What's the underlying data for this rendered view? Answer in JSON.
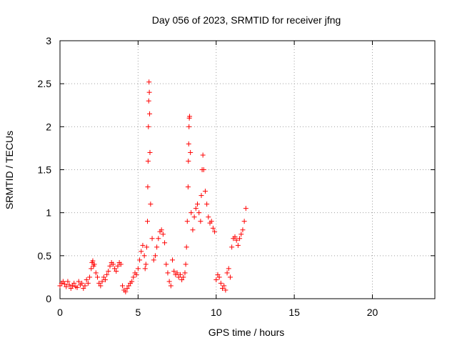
{
  "chart_data": {
    "type": "scatter",
    "title": "Day 056 of 2023, SRMTID for receiver jfng",
    "xlabel": "GPS time / hours",
    "ylabel": "SRMTID / TECUs",
    "xlim": [
      0,
      24
    ],
    "ylim": [
      0,
      3
    ],
    "xticks": [
      0,
      5,
      10,
      15,
      20
    ],
    "yticks": [
      0,
      0.5,
      1,
      1.5,
      2,
      2.5,
      3
    ],
    "xtick_labels": [
      "0",
      "5",
      "10",
      "15",
      "20"
    ],
    "ytick_labels": [
      "0",
      "0.5",
      "1",
      "1.5",
      "2",
      "2.5",
      "3"
    ],
    "grid": true,
    "marker": "+",
    "series": [
      {
        "name": "SRMTID",
        "color": "#ff0000",
        "x": [
          0.0,
          0.1,
          0.2,
          0.3,
          0.4,
          0.5,
          0.6,
          0.7,
          0.8,
          0.9,
          1.0,
          1.1,
          1.2,
          1.3,
          1.4,
          1.5,
          1.6,
          1.7,
          1.8,
          1.9,
          2.0,
          2.05,
          2.1,
          2.15,
          2.2,
          2.3,
          2.4,
          2.5,
          2.6,
          2.7,
          2.8,
          2.9,
          3.0,
          3.1,
          3.2,
          3.3,
          3.4,
          3.5,
          3.6,
          3.7,
          3.8,
          3.9,
          4.0,
          4.1,
          4.2,
          4.3,
          4.4,
          4.5,
          4.6,
          4.7,
          4.8,
          4.9,
          5.0,
          5.1,
          5.2,
          5.3,
          5.4,
          5.45,
          5.5,
          5.55,
          5.6,
          5.62,
          5.64,
          5.66,
          5.68,
          5.7,
          5.72,
          5.74,
          5.76,
          5.8,
          5.9,
          6.0,
          6.1,
          6.2,
          6.3,
          6.4,
          6.5,
          6.6,
          6.7,
          6.8,
          6.9,
          7.0,
          7.1,
          7.2,
          7.3,
          7.4,
          7.5,
          7.6,
          7.7,
          7.8,
          7.9,
          8.0,
          8.05,
          8.1,
          8.15,
          8.2,
          8.22,
          8.24,
          8.26,
          8.28,
          8.3,
          8.35,
          8.4,
          8.5,
          8.6,
          8.7,
          8.8,
          8.9,
          9.0,
          9.05,
          9.1,
          9.15,
          9.2,
          9.3,
          9.4,
          9.5,
          9.6,
          9.7,
          9.8,
          9.9,
          10.0,
          10.1,
          10.2,
          10.3,
          10.4,
          10.5,
          10.6,
          10.7,
          10.8,
          10.9,
          11.0,
          11.1,
          11.2,
          11.3,
          11.4,
          11.5,
          11.6,
          11.7,
          11.8,
          11.9
        ],
        "y": [
          0.15,
          0.18,
          0.2,
          0.17,
          0.14,
          0.2,
          0.16,
          0.12,
          0.15,
          0.18,
          0.14,
          0.13,
          0.2,
          0.16,
          0.18,
          0.12,
          0.15,
          0.22,
          0.18,
          0.25,
          0.35,
          0.42,
          0.44,
          0.38,
          0.4,
          0.3,
          0.25,
          0.18,
          0.15,
          0.2,
          0.25,
          0.22,
          0.28,
          0.32,
          0.38,
          0.42,
          0.4,
          0.35,
          0.32,
          0.38,
          0.42,
          0.4,
          0.15,
          0.1,
          0.08,
          0.12,
          0.15,
          0.18,
          0.2,
          0.25,
          0.3,
          0.28,
          0.35,
          0.45,
          0.55,
          0.62,
          0.5,
          0.35,
          0.4,
          0.6,
          0.9,
          1.3,
          1.6,
          2.0,
          2.3,
          2.52,
          2.4,
          2.15,
          1.7,
          1.1,
          0.7,
          0.45,
          0.5,
          0.6,
          0.7,
          0.78,
          0.8,
          0.75,
          0.65,
          0.4,
          0.3,
          0.2,
          0.15,
          0.45,
          0.32,
          0.28,
          0.3,
          0.25,
          0.28,
          0.22,
          0.25,
          0.3,
          0.4,
          0.6,
          0.9,
          1.3,
          1.6,
          1.8,
          2.0,
          2.1,
          2.12,
          1.7,
          1.0,
          0.8,
          0.95,
          1.05,
          1.1,
          1.0,
          0.9,
          1.2,
          1.5,
          1.67,
          1.5,
          1.25,
          1.1,
          0.95,
          0.88,
          0.9,
          0.82,
          0.78,
          0.22,
          0.28,
          0.25,
          0.18,
          0.12,
          0.15,
          0.1,
          0.3,
          0.35,
          0.25,
          0.6,
          0.7,
          0.72,
          0.68,
          0.62,
          0.7,
          0.75,
          0.8,
          0.9,
          1.05
        ]
      }
    ]
  }
}
